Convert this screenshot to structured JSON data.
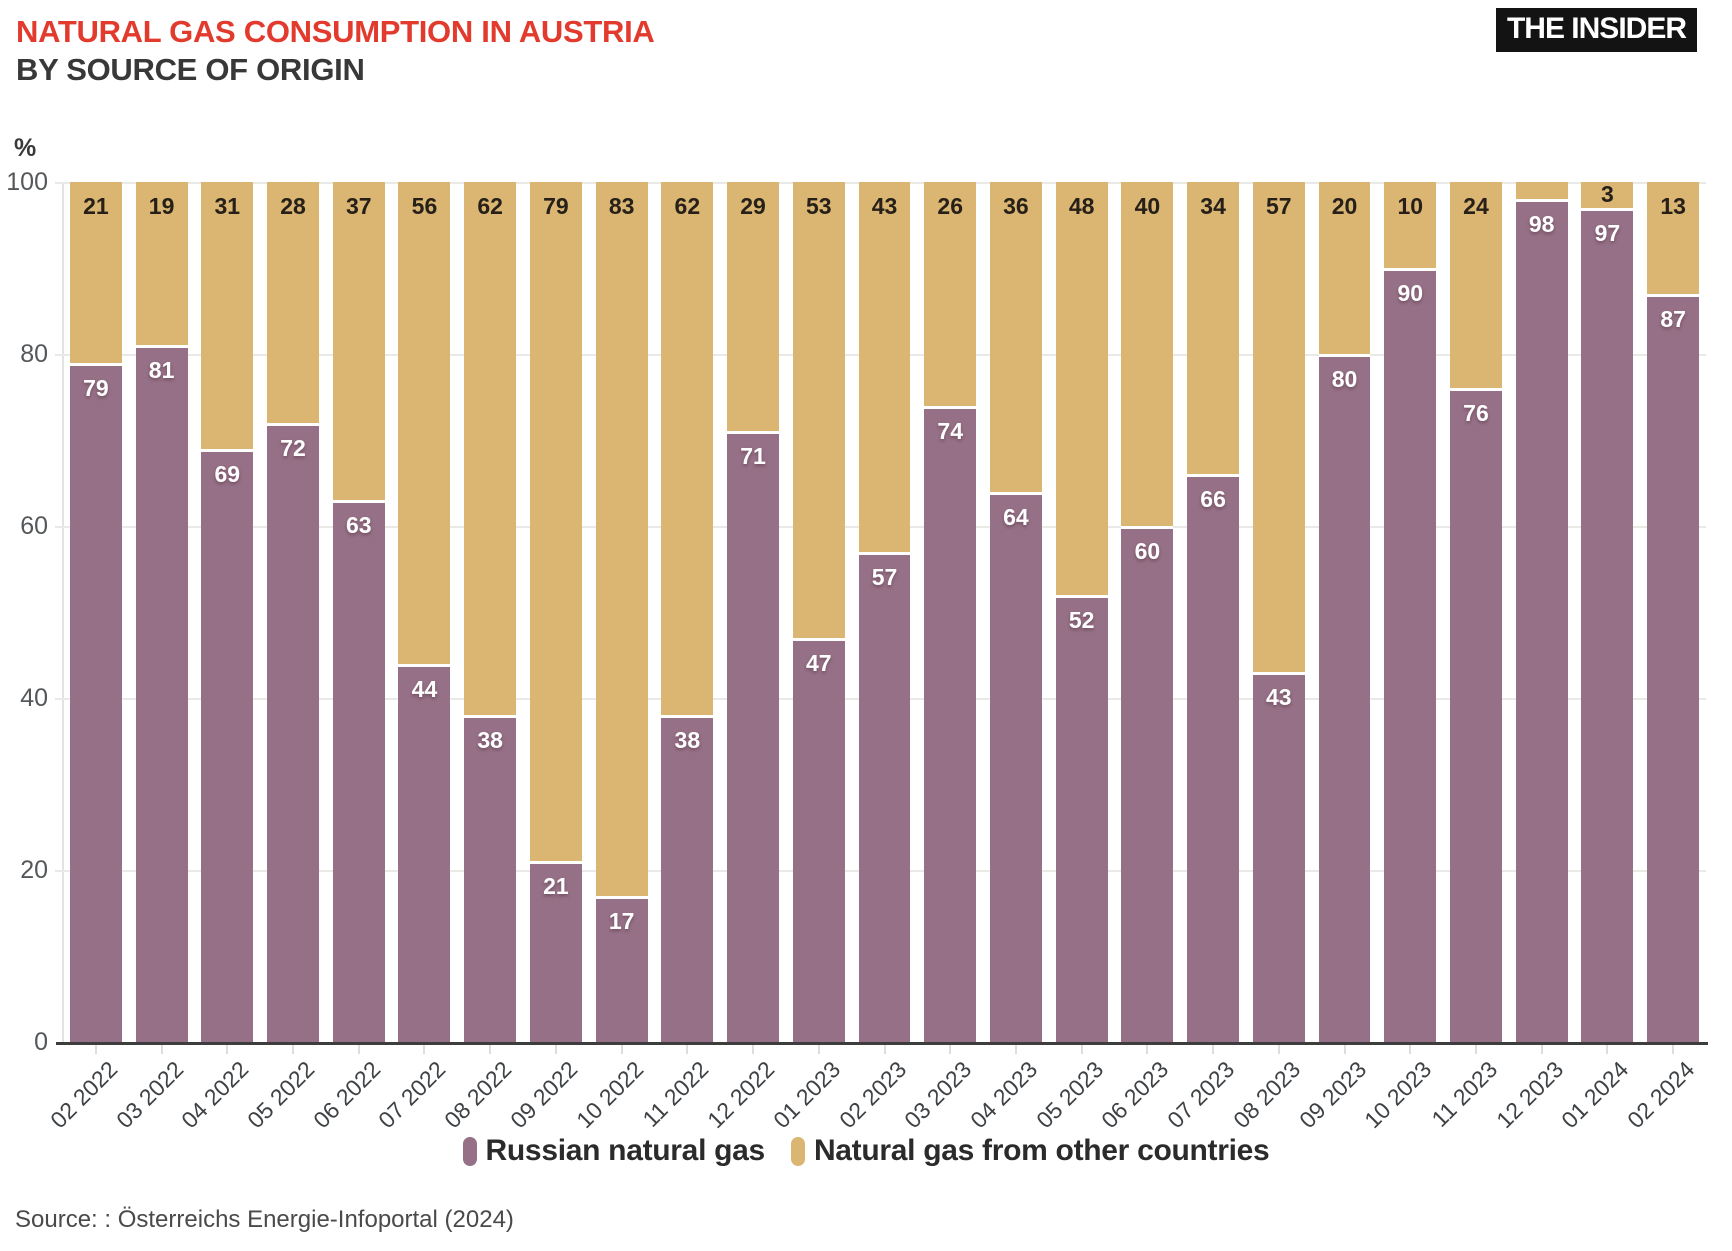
{
  "header": {
    "title": "NATURAL GAS CONSUMPTION IN AUSTRIA",
    "subtitle": "BY SOURCE OF ORIGIN",
    "logo": "THE INSIDER"
  },
  "colors": {
    "title_red": "#e23b2e",
    "russian_purple": "#967086",
    "other_tan": "#dbb572"
  },
  "chart_data": {
    "type": "bar",
    "stacked": true,
    "unit": "%",
    "ylabel": "%",
    "ylim": [
      0,
      100
    ],
    "yticks": [
      0,
      20,
      40,
      60,
      80,
      100
    ],
    "grid": true,
    "legend_position": "bottom",
    "categories": [
      "02 2022",
      "03 2022",
      "04 2022",
      "05 2022",
      "06 2022",
      "07 2022",
      "08 2022",
      "09 2022",
      "10 2022",
      "11 2022",
      "12 2022",
      "01 2023",
      "02 2023",
      "03 2023",
      "04 2023",
      "05 2023",
      "06 2023",
      "07 2023",
      "08 2023",
      "09 2023",
      "10 2023",
      "11 2023",
      "12 2023",
      "01 2024",
      "02 2024"
    ],
    "series": [
      {
        "name": "Russian natural gas",
        "color": "#967086",
        "values": [
          79,
          81,
          69,
          72,
          63,
          44,
          38,
          21,
          17,
          38,
          71,
          47,
          57,
          74,
          64,
          52,
          60,
          66,
          43,
          80,
          90,
          76,
          98,
          97,
          87
        ],
        "labels": [
          "79",
          "81",
          "69",
          "72",
          "63",
          "44",
          "38",
          "21",
          "17",
          "38",
          "71",
          "47",
          "57",
          "74",
          "64",
          "52",
          "60",
          "66",
          "43",
          "80",
          "90",
          "76",
          "98",
          "97",
          "87"
        ]
      },
      {
        "name": "Natural gas from other countries",
        "color": "#dbb572",
        "values": [
          21,
          19,
          31,
          28,
          37,
          56,
          62,
          79,
          83,
          62,
          29,
          53,
          43,
          26,
          36,
          48,
          40,
          34,
          57,
          20,
          10,
          24,
          2,
          3,
          13
        ],
        "labels": [
          "21",
          "19",
          "31",
          "28",
          "37",
          "56",
          "62",
          "79",
          "83",
          "62",
          "29",
          "53",
          "43",
          "26",
          "36",
          "48",
          "40",
          "34",
          "57",
          "20",
          "10",
          "24",
          "",
          "3",
          "13"
        ]
      }
    ]
  },
  "source_text": "Source: : Österreichs Energie-Infoportal (2024)"
}
